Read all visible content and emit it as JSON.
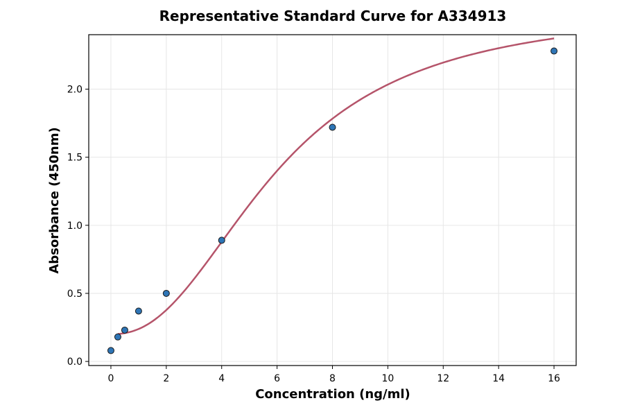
{
  "chart_data": {
    "type": "scatter",
    "title": "Representative Standard Curve for A334913",
    "xlabel": "Concentration (ng/ml)",
    "ylabel": "Absorbance (450nm)",
    "xlim": [
      -0.8,
      16.8
    ],
    "ylim": [
      -0.03,
      2.4
    ],
    "xticks": [
      0,
      2,
      4,
      6,
      8,
      10,
      12,
      14,
      16
    ],
    "yticks": [
      0.0,
      0.5,
      1.0,
      1.5,
      2.0
    ],
    "ytick_labels": [
      "0.0",
      "0.5",
      "1.0",
      "1.5",
      "2.0"
    ],
    "grid": true,
    "points": {
      "x": [
        0,
        0.25,
        0.5,
        1,
        2,
        4,
        8,
        16
      ],
      "y": [
        0.08,
        0.18,
        0.23,
        0.37,
        0.5,
        0.89,
        1.72,
        2.28
      ]
    },
    "fit_curve": {
      "type": "4PL",
      "a": 0.2,
      "b": 2.3,
      "c": 6.0,
      "d": 2.6,
      "x_range": [
        0.25,
        16
      ]
    },
    "colors": {
      "point_fill": "#2e75b6",
      "curve": "#b5546a"
    }
  }
}
